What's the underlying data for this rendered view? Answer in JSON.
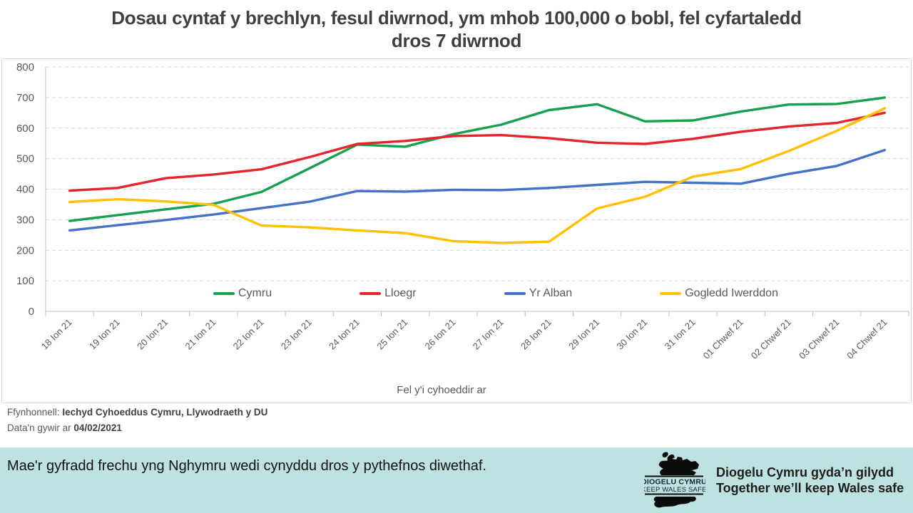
{
  "title_line1": "Dosau cyntaf y brechlyn, fesul diwrnod, ym mhob 100,000 o bobl, fel cyfartaledd",
  "title_line2": "dros 7 diwrnod",
  "chart_data": {
    "type": "line",
    "x": [
      "18 Ion 21",
      "19 Ion 21",
      "20 Ion 21",
      "21 Ion 21",
      "22 Ion 21",
      "23 Ion 21",
      "24 Ion 21",
      "25 Ion 21",
      "26 Ion 21",
      "27 Ion 21",
      "28 Ion 21",
      "29 Ion 21",
      "30 Ion 21",
      "31 Ion 21",
      "01 Chwef 21",
      "02 Chwef 21",
      "03 Chwef 21",
      "04 Chwef 21"
    ],
    "series": [
      {
        "name": "Cymru",
        "color": "#17A04E",
        "values": [
          296,
          315,
          334,
          352,
          391,
          468,
          546,
          539,
          580,
          611,
          659,
          678,
          622,
          625,
          654,
          677,
          679,
          700
        ]
      },
      {
        "name": "Lloegr",
        "color": "#E6242B",
        "values": [
          395,
          404,
          436,
          448,
          465,
          505,
          548,
          558,
          574,
          577,
          567,
          552,
          548,
          565,
          588,
          605,
          617,
          650
        ]
      },
      {
        "name": "Yr Alban",
        "color": "#4472C4",
        "values": [
          265,
          282,
          299,
          317,
          338,
          359,
          394,
          392,
          398,
          397,
          404,
          414,
          424,
          421,
          418,
          450,
          476,
          528
        ]
      },
      {
        "name": "Gogledd Iwerddon",
        "color": "#FFC000",
        "values": [
          358,
          367,
          360,
          349,
          281,
          275,
          265,
          256,
          230,
          224,
          228,
          337,
          375,
          441,
          466,
          525,
          591,
          665
        ]
      }
    ],
    "xlabel": "Fel y'i cyhoeddir ar",
    "ylabel": "",
    "ylim": [
      0,
      800
    ],
    "ytick_step": 100,
    "grid": "horizontal-dashed",
    "legend_position": "bottom-inside"
  },
  "source": {
    "label": "Ffynhonnell:",
    "value": "Iechyd Cyhoeddus Cymru, Llywodraeth y DU",
    "accuracy_label": "Data'n gywir ar",
    "accuracy_date": "04/02/2021"
  },
  "banner": {
    "message": "Mae'r gyfradd frechu yng Nghymru  wedi cynyddu dros y pythefnos diwethaf.",
    "background": "#BEE2E1",
    "logo_line1": "DIOGELU CYMRU",
    "logo_line2": "KEEP WALES SAFE",
    "slogan_line1": "Diogelu Cymru gyda’n gilydd",
    "slogan_line2": "Together we’ll keep Wales safe"
  }
}
